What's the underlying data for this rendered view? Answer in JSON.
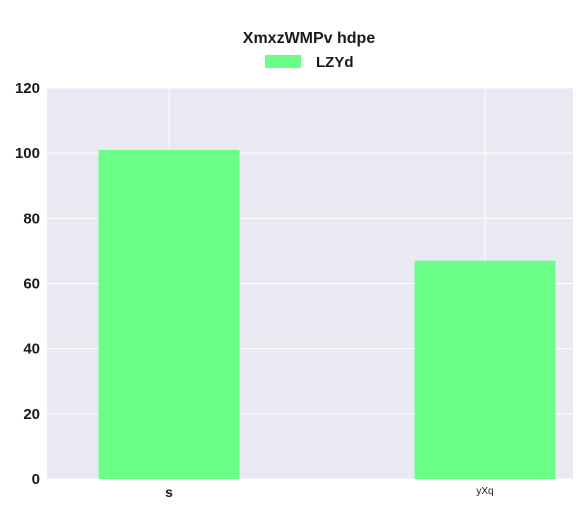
{
  "chart_data": {
    "type": "bar",
    "title": "XmxzWMPv  hdpe",
    "categories": [
      "s",
      "yXq"
    ],
    "series": [
      {
        "name": "LZYd",
        "values": [
          101,
          67
        ]
      }
    ],
    "ylim": [
      0,
      120
    ],
    "yticks": [
      0,
      20,
      40,
      60,
      80,
      100,
      120
    ],
    "xlabel": "",
    "ylabel": "",
    "grid": true,
    "legend": "top-center"
  },
  "colors": {
    "bar": "#6bff8a",
    "plot_background": "#e9e9f2",
    "grid": "#ffffff"
  }
}
